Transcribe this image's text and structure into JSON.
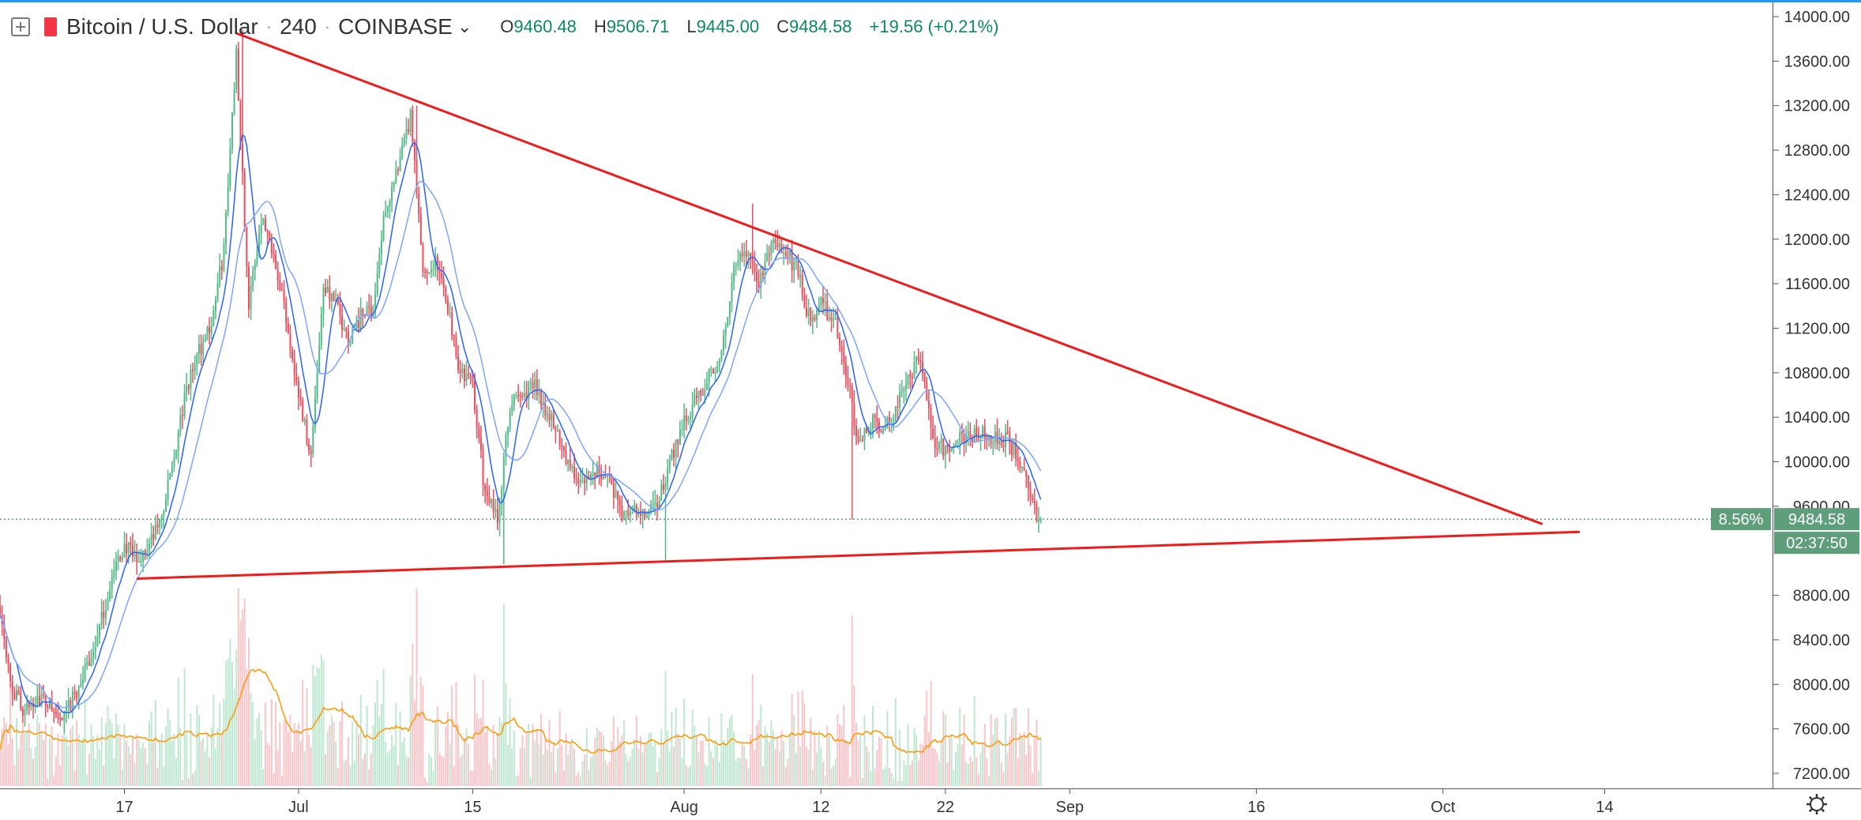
{
  "legend": {
    "symbol": "Bitcoin / U.S. Dollar",
    "interval": "240",
    "exchange": "COINBASE",
    "open_label": "O",
    "open": "9460.48",
    "high_label": "H",
    "high": "9506.71",
    "low_label": "L",
    "low": "9445.00",
    "close_label": "C",
    "close": "9484.58",
    "change": "+19.56 (+0.21%)"
  },
  "price_axis": {
    "ticks": [
      "14000.00",
      "13600.00",
      "13200.00",
      "12800.00",
      "12400.00",
      "12000.00",
      "11600.00",
      "11200.00",
      "10800.00",
      "10400.00",
      "10000.00",
      "9600.00",
      "8800.00",
      "8400.00",
      "8000.00",
      "7600.00",
      "7200.00"
    ]
  },
  "time_axis": {
    "ticks": [
      "17",
      "Jul",
      "15",
      "Aug",
      "12",
      "22",
      "Sep",
      "16",
      "Oct",
      "14"
    ]
  },
  "markers": {
    "last_price": "9484.58",
    "percent": "8.56%",
    "countdown": "02:37:50"
  },
  "colors": {
    "up": "#53b987",
    "down": "#eb4d5c",
    "trendline": "#ee1c1c",
    "ma_fast": "#2962ff",
    "ma_slow": "#7da6ff",
    "volume_ma": "#ff9800",
    "last_price_label": "#5e9e7b"
  },
  "chart_data": {
    "type": "candlestick",
    "interval_hours": 4,
    "x_range": [
      "2019-06-07",
      "2019-10-16"
    ],
    "y_range": [
      7000,
      14200
    ],
    "price_path": [
      [
        "2019-06-07",
        8700
      ],
      [
        "2019-06-08",
        7950
      ],
      [
        "2019-06-09",
        7750
      ],
      [
        "2019-06-10",
        7900
      ],
      [
        "2019-06-11",
        7800
      ],
      [
        "2019-06-12",
        7650
      ],
      [
        "2019-06-13",
        7900
      ],
      [
        "2019-06-14",
        8150
      ],
      [
        "2019-06-15",
        8500
      ],
      [
        "2019-06-16",
        8950
      ],
      [
        "2019-06-17",
        9250
      ],
      [
        "2019-06-18",
        9100
      ],
      [
        "2019-06-19",
        9250
      ],
      [
        "2019-06-20",
        9500
      ],
      [
        "2019-06-21",
        10050
      ],
      [
        "2019-06-22",
        10650
      ],
      [
        "2019-06-23",
        11000
      ],
      [
        "2019-06-24",
        11250
      ],
      [
        "2019-06-25",
        11900
      ],
      [
        "2019-06-26",
        13700
      ],
      [
        "2019-06-27",
        11400
      ],
      [
        "2019-06-28",
        12200
      ],
      [
        "2019-06-29",
        11900
      ],
      [
        "2019-06-30",
        11300
      ],
      [
        "2019-07-01",
        10600
      ],
      [
        "2019-07-02",
        10050
      ],
      [
        "2019-07-03",
        11600
      ],
      [
        "2019-07-04",
        11400
      ],
      [
        "2019-07-05",
        11100
      ],
      [
        "2019-07-06",
        11300
      ],
      [
        "2019-07-07",
        11400
      ],
      [
        "2019-07-08",
        12300
      ],
      [
        "2019-07-09",
        12600
      ],
      [
        "2019-07-10",
        13100
      ],
      [
        "2019-07-11",
        11700
      ],
      [
        "2019-07-12",
        11800
      ],
      [
        "2019-07-13",
        11400
      ],
      [
        "2019-07-14",
        10800
      ],
      [
        "2019-07-15",
        10700
      ],
      [
        "2019-07-16",
        9700
      ],
      [
        "2019-07-17",
        9500
      ],
      [
        "2019-07-18",
        10500
      ],
      [
        "2019-07-19",
        10600
      ],
      [
        "2019-07-20",
        10700
      ],
      [
        "2019-07-21",
        10450
      ],
      [
        "2019-07-22",
        10200
      ],
      [
        "2019-07-23",
        9900
      ],
      [
        "2019-07-24",
        9800
      ],
      [
        "2019-07-25",
        9950
      ],
      [
        "2019-07-26",
        9850
      ],
      [
        "2019-07-27",
        9500
      ],
      [
        "2019-07-28",
        9550
      ],
      [
        "2019-07-29",
        9500
      ],
      [
        "2019-07-30",
        9650
      ],
      [
        "2019-07-31",
        10050
      ],
      [
        "2019-08-01",
        10400
      ],
      [
        "2019-08-02",
        10550
      ],
      [
        "2019-08-03",
        10800
      ],
      [
        "2019-08-04",
        10950
      ],
      [
        "2019-08-05",
        11700
      ],
      [
        "2019-08-06",
        11900
      ],
      [
        "2019-08-07",
        11600
      ],
      [
        "2019-08-08",
        11950
      ],
      [
        "2019-08-09",
        11900
      ],
      [
        "2019-08-10",
        11750
      ],
      [
        "2019-08-11",
        11300
      ],
      [
        "2019-08-12",
        11400
      ],
      [
        "2019-08-13",
        11300
      ],
      [
        "2019-08-14",
        10800
      ],
      [
        "2019-08-15",
        10200
      ],
      [
        "2019-08-16",
        10350
      ],
      [
        "2019-08-17",
        10300
      ],
      [
        "2019-08-18",
        10450
      ],
      [
        "2019-08-19",
        10800
      ],
      [
        "2019-08-20",
        10900
      ],
      [
        "2019-08-21",
        10200
      ],
      [
        "2019-08-22",
        10100
      ],
      [
        "2019-08-23",
        10250
      ],
      [
        "2019-08-24",
        10200
      ],
      [
        "2019-08-25",
        10300
      ],
      [
        "2019-08-26",
        10200
      ],
      [
        "2019-08-27",
        10200
      ],
      [
        "2019-08-28",
        10000
      ],
      [
        "2019-08-29",
        9600
      ],
      [
        "2019-08-29T16",
        9480
      ]
    ],
    "extremes": [
      [
        "2019-06-26",
        13880
      ],
      [
        "2019-07-10",
        13200
      ],
      [
        "2019-07-17",
        9080
      ],
      [
        "2019-07-30",
        9100
      ],
      [
        "2019-08-06",
        12320
      ],
      [
        "2019-08-14",
        9480
      ]
    ],
    "moving_averages": [
      "fast",
      "slow"
    ],
    "trendlines": [
      {
        "name": "descending resistance",
        "from": [
          "2019-06-26",
          13850
        ],
        "to": [
          "2019-10-09",
          9440
        ]
      },
      {
        "name": "ascending support",
        "from": [
          "2019-06-18",
          8950
        ],
        "to": [
          "2019-10-12",
          9370
        ]
      }
    ],
    "volume_range": [
      0,
      1200
    ]
  }
}
